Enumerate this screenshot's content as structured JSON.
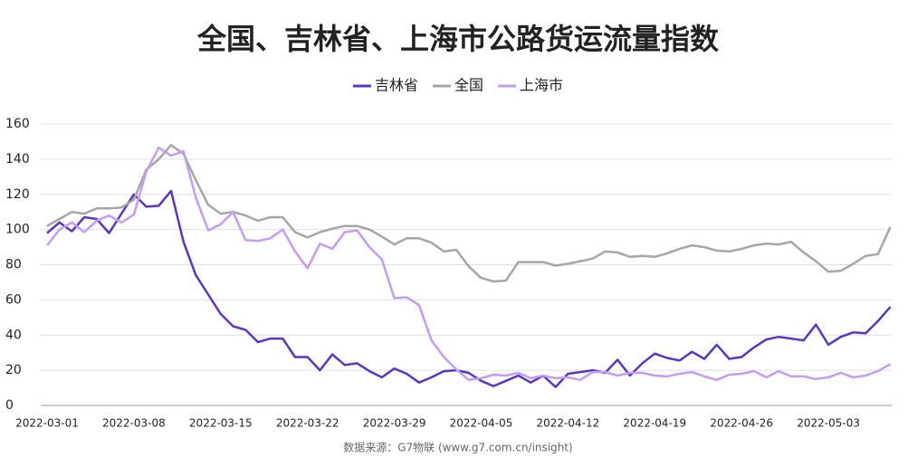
{
  "chart_data": {
    "type": "line",
    "title": "全国、吉林省、上海市公路货运流量指数",
    "source": "数据来源：G7物联 (www.g7.com.cn/insight)",
    "x": [
      "2022-03-01",
      "2022-03-02",
      "2022-03-03",
      "2022-03-04",
      "2022-03-05",
      "2022-03-06",
      "2022-03-07",
      "2022-03-08",
      "2022-03-09",
      "2022-03-10",
      "2022-03-11",
      "2022-03-12",
      "2022-03-13",
      "2022-03-14",
      "2022-03-15",
      "2022-03-16",
      "2022-03-17",
      "2022-03-18",
      "2022-03-19",
      "2022-03-20",
      "2022-03-21",
      "2022-03-22",
      "2022-03-23",
      "2022-03-24",
      "2022-03-25",
      "2022-03-26",
      "2022-03-27",
      "2022-03-28",
      "2022-03-29",
      "2022-03-30",
      "2022-03-31",
      "2022-04-01",
      "2022-04-02",
      "2022-04-03",
      "2022-04-04",
      "2022-04-05",
      "2022-04-06",
      "2022-04-07",
      "2022-04-08",
      "2022-04-09",
      "2022-04-10",
      "2022-04-11",
      "2022-04-12",
      "2022-04-13",
      "2022-04-14",
      "2022-04-15",
      "2022-04-16",
      "2022-04-17",
      "2022-04-18",
      "2022-04-19",
      "2022-04-20",
      "2022-04-21",
      "2022-04-22",
      "2022-04-23",
      "2022-04-24",
      "2022-04-25",
      "2022-04-26",
      "2022-04-27",
      "2022-04-28",
      "2022-04-29",
      "2022-04-30",
      "2022-05-01",
      "2022-05-02",
      "2022-05-03",
      "2022-05-04",
      "2022-05-05",
      "2022-05-06",
      "2022-05-07",
      "2022-05-08"
    ],
    "xticks": [
      "2022-03-01",
      "2022-03-08",
      "2022-03-15",
      "2022-03-22",
      "2022-03-29",
      "2022-04-05",
      "2022-04-12",
      "2022-04-19",
      "2022-04-26",
      "2022-05-03"
    ],
    "ylim": [
      0,
      160
    ],
    "yticks": [
      0,
      20,
      40,
      60,
      80,
      100,
      120,
      140,
      160
    ],
    "grid": true,
    "legend": "top",
    "series": [
      {
        "name": "吉林省",
        "color": "#5b35c9",
        "values": [
          98,
          104,
          99,
          107,
          106,
          98,
          109,
          120,
          113,
          113.5,
          122,
          93,
          74,
          63,
          52,
          45,
          43,
          36,
          38,
          38,
          27.5,
          27.5,
          20,
          29,
          23,
          24,
          19.5,
          16,
          21,
          18,
          13,
          16,
          19.5,
          20,
          18.5,
          14,
          11,
          14,
          17,
          13,
          17,
          10.5,
          18,
          19,
          20,
          18.5,
          26,
          17,
          24,
          29.5,
          27,
          25.5,
          30.5,
          26.5,
          34.5,
          26.5,
          27.5,
          33,
          37.5,
          39,
          38,
          37,
          46,
          34.5,
          39,
          41.5,
          41,
          48,
          56
        ]
      },
      {
        "name": "全国",
        "color": "#a6a6a6",
        "values": [
          102,
          106,
          110,
          109,
          112,
          112,
          112.5,
          117,
          134,
          140,
          148,
          143,
          128,
          114,
          109,
          110,
          108,
          105,
          107,
          107,
          98.5,
          95.5,
          98.5,
          100.5,
          102,
          102,
          100,
          96,
          91.5,
          95,
          95,
          92.5,
          87.5,
          88.5,
          79,
          72.5,
          70.5,
          71,
          81.5,
          81.5,
          81.5,
          79.5,
          80.5,
          82,
          83.5,
          87.5,
          87,
          84.5,
          85,
          84.5,
          86.5,
          89,
          91,
          90,
          88,
          87.5,
          89,
          91,
          92,
          91.5,
          93,
          87,
          82,
          76,
          76.5,
          80.5,
          85,
          86,
          101.5
        ]
      },
      {
        "name": "上海市",
        "color": "#c49cf5",
        "values": [
          91,
          100,
          104,
          98.5,
          105,
          108,
          104,
          108.5,
          133,
          146.5,
          142,
          144.5,
          118,
          99.5,
          103,
          110,
          94,
          93.5,
          95,
          100,
          87.5,
          78,
          92,
          89,
          98.5,
          99.5,
          90,
          83,
          61,
          61.5,
          57,
          37,
          27.5,
          20.5,
          14.5,
          15.5,
          17.5,
          17,
          18.5,
          15.5,
          17,
          15.5,
          16,
          14.5,
          19,
          19,
          17,
          18.5,
          18.5,
          17,
          16.5,
          18,
          19,
          16.5,
          14.5,
          17.5,
          18,
          19.5,
          16,
          19.5,
          16.5,
          16.5,
          15,
          16,
          18.5,
          16,
          17,
          19.5,
          23.5
        ]
      }
    ]
  }
}
